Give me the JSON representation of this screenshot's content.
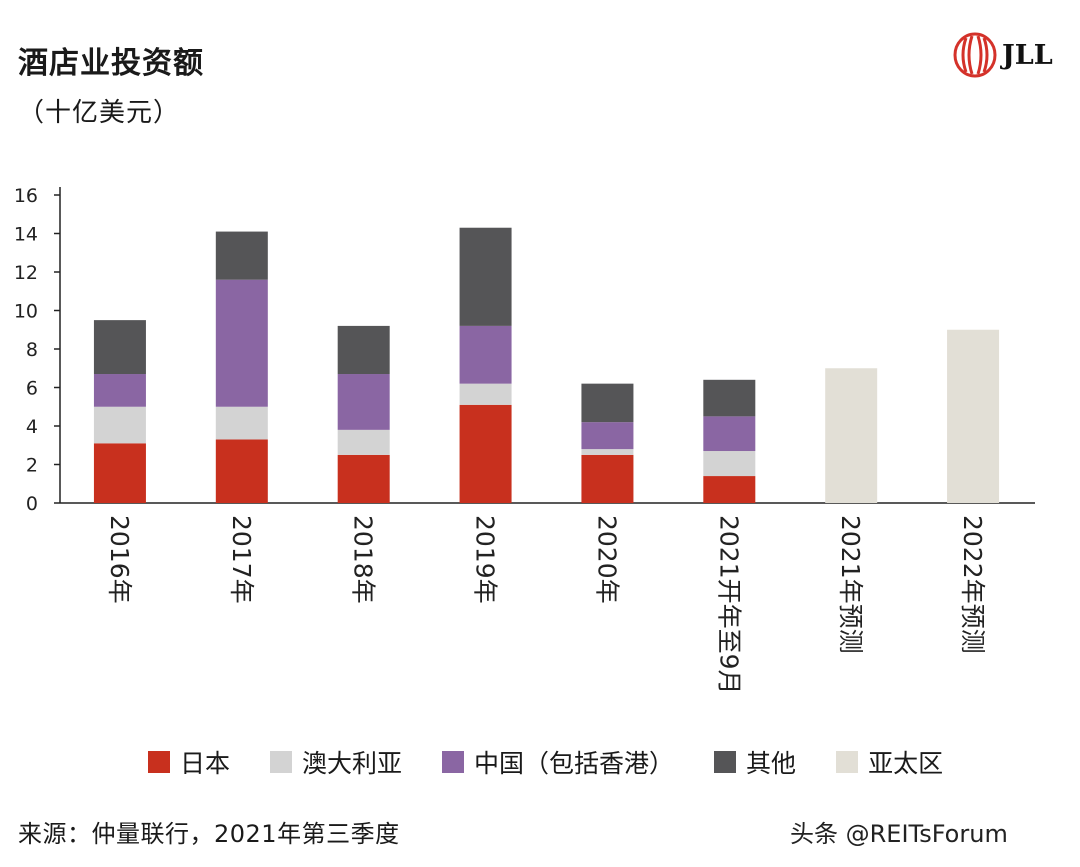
{
  "header": {
    "title": "酒店业投资额",
    "subtitle": "（十亿美元）",
    "logo_text": "JLL",
    "logo_icon": "jll-logo-icon"
  },
  "footer": {
    "source": "来源：仲量联行，2021年第三季度",
    "watermark": "头条 @REITsForum"
  },
  "colors": {
    "japan": "#c8301e",
    "australia": "#d3d3d3",
    "china": "#8a66a3",
    "other": "#555557",
    "apac": "#e2dfd6",
    "axis": "#222222"
  },
  "chart_data": {
    "type": "bar",
    "stacked": true,
    "title": "酒店业投资额",
    "ylabel": "（十亿美元）",
    "xlabel": "",
    "ylim": [
      0,
      16
    ],
    "yticks": [
      0,
      2,
      4,
      6,
      8,
      10,
      12,
      14,
      16
    ],
    "grid": false,
    "legend_position": "bottom",
    "categories": [
      "2016年",
      "2017年",
      "2018年",
      "2019年",
      "2020年",
      "2021开年至9月",
      "2021年预测",
      "2022年预测"
    ],
    "series": [
      {
        "name": "日本",
        "color": "#c8301e",
        "values": [
          3.1,
          3.3,
          2.5,
          5.1,
          2.5,
          1.4,
          0,
          0
        ]
      },
      {
        "name": "澳大利亚",
        "color": "#d3d3d3",
        "values": [
          1.9,
          1.7,
          1.3,
          1.1,
          0.3,
          1.3,
          0,
          0
        ]
      },
      {
        "name": "中国（包括香港）",
        "color": "#8a66a3",
        "values": [
          1.7,
          6.6,
          2.9,
          3.0,
          1.4,
          1.8,
          0,
          0
        ]
      },
      {
        "name": "其他",
        "color": "#555557",
        "values": [
          2.8,
          2.5,
          2.5,
          5.1,
          2.0,
          1.9,
          0,
          0
        ]
      },
      {
        "name": "亚太区",
        "color": "#e2dfd6",
        "values": [
          0,
          0,
          0,
          0,
          0,
          0,
          7.0,
          9.0
        ]
      }
    ]
  }
}
